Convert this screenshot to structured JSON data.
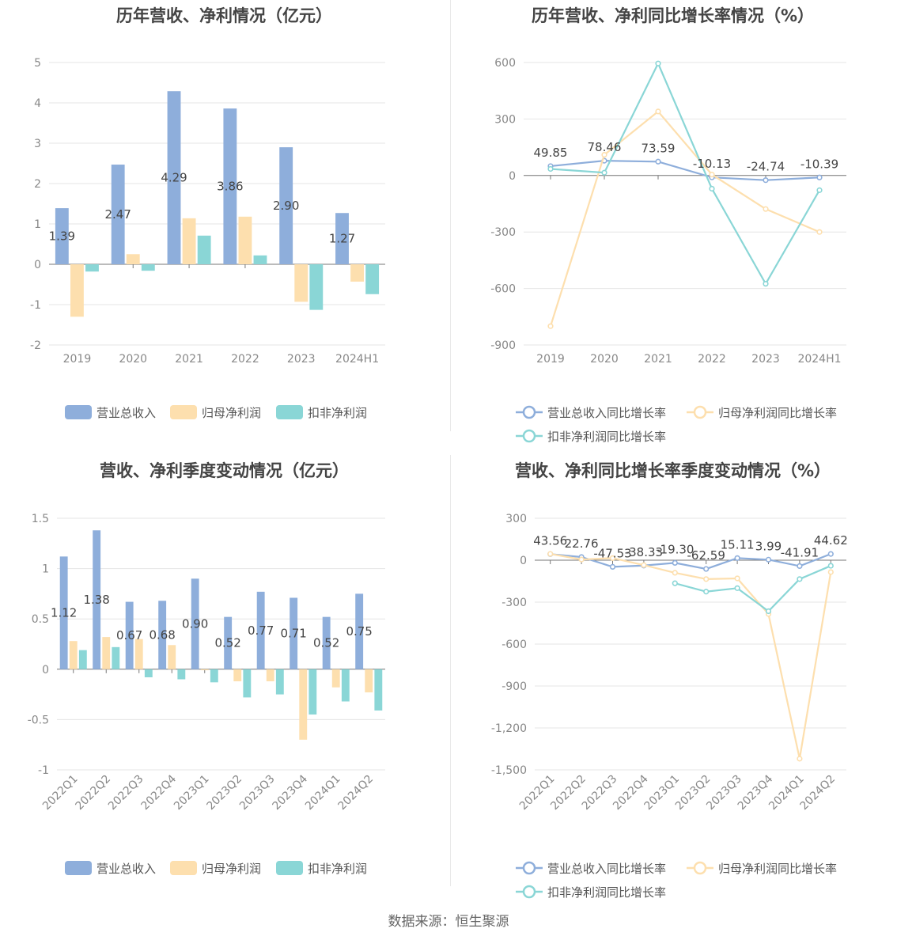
{
  "source": "数据来源：恒生聚源",
  "colors": {
    "revenue": "#8eaedb",
    "netprofit": "#fddfae",
    "deducted": "#8ad6d6",
    "grid": "#e6e6e6",
    "axis": "#777777"
  },
  "chart_data": [
    {
      "type": "bar",
      "title": "历年营收、净利情况（亿元）",
      "categories": [
        "2019",
        "2020",
        "2021",
        "2022",
        "2023",
        "2024H1"
      ],
      "ylim": [
        -2,
        5
      ],
      "yticks": [
        -2,
        -1,
        0,
        1,
        2,
        3,
        4,
        5
      ],
      "series": [
        {
          "name": "营业总收入",
          "color": "#8eaedb",
          "values": [
            1.39,
            2.47,
            4.29,
            3.86,
            2.9,
            1.27
          ],
          "labels": [
            "1.39",
            "2.47",
            "4.29",
            "3.86",
            "2.90",
            "1.27"
          ]
        },
        {
          "name": "归母净利润",
          "color": "#fddfae",
          "values": [
            -1.3,
            0.25,
            1.14,
            1.18,
            -0.93,
            -0.43
          ]
        },
        {
          "name": "扣非净利润",
          "color": "#8ad6d6",
          "values": [
            -0.18,
            -0.16,
            0.71,
            0.22,
            -1.13,
            -0.74
          ]
        }
      ]
    },
    {
      "type": "line",
      "title": "历年营收、净利同比增长率情况（%）",
      "categories": [
        "2019",
        "2020",
        "2021",
        "2022",
        "2023",
        "2024H1"
      ],
      "ylim": [
        -900,
        600
      ],
      "yticks": [
        -900,
        -600,
        -300,
        0,
        300,
        600
      ],
      "series": [
        {
          "name": "营业总收入同比增长率",
          "color": "#8eaedb",
          "values": [
            49.85,
            78.46,
            73.59,
            -10.13,
            -24.74,
            -10.39
          ],
          "labels": [
            "49.85",
            "78.46",
            "73.59",
            "-10.13",
            "-24.74",
            "-10.39"
          ]
        },
        {
          "name": "归母净利润同比增长率",
          "color": "#fddfae",
          "values": [
            -800,
            110,
            340,
            5,
            -178,
            -300
          ]
        },
        {
          "name": "扣非净利润同比增长率",
          "color": "#8ad6d6",
          "values": [
            35,
            15,
            595,
            -70,
            -575,
            -78
          ]
        }
      ]
    },
    {
      "type": "bar",
      "title": "营收、净利季度变动情况（亿元）",
      "categories": [
        "2022Q1",
        "2022Q2",
        "2022Q3",
        "2022Q4",
        "2023Q1",
        "2023Q2",
        "2023Q3",
        "2023Q4",
        "2024Q1",
        "2024Q2"
      ],
      "ylim": [
        -1,
        1.5
      ],
      "yticks": [
        -1,
        -0.5,
        0,
        0.5,
        1,
        1.5
      ],
      "series": [
        {
          "name": "营业总收入",
          "color": "#8eaedb",
          "values": [
            1.12,
            1.38,
            0.67,
            0.68,
            0.9,
            0.52,
            0.77,
            0.71,
            0.52,
            0.75
          ],
          "labels": [
            "1.12",
            "1.38",
            "0.67",
            "0.68",
            "0.90",
            "0.52",
            "0.77",
            "0.71",
            "0.52",
            "0.75"
          ]
        },
        {
          "name": "归母净利润",
          "color": "#fddfae",
          "values": [
            0.28,
            0.32,
            0.3,
            0.24,
            -0.01,
            -0.12,
            -0.12,
            -0.7,
            -0.18,
            -0.23
          ]
        },
        {
          "name": "扣非净利润",
          "color": "#8ad6d6",
          "values": [
            0.19,
            0.22,
            -0.08,
            -0.1,
            -0.13,
            -0.28,
            -0.25,
            -0.45,
            -0.32,
            -0.41
          ]
        }
      ]
    },
    {
      "type": "line",
      "title": "营收、净利同比增长率季度变动情况（%）",
      "categories": [
        "2022Q1",
        "2022Q2",
        "2022Q3",
        "2022Q4",
        "2023Q1",
        "2023Q2",
        "2023Q3",
        "2023Q4",
        "2024Q1",
        "2024Q2"
      ],
      "ylim": [
        -1500,
        300
      ],
      "yticks": [
        -1500,
        -1200,
        -900,
        -600,
        -300,
        0,
        300
      ],
      "series": [
        {
          "name": "营业总收入同比增长率",
          "color": "#8eaedb",
          "values": [
            43.56,
            22.76,
            -47.53,
            -38.33,
            -19.3,
            -62.59,
            15.11,
            3.99,
            -41.91,
            44.62
          ],
          "labels": [
            "43.56",
            "22.76",
            "-47.53",
            "-38.33",
            "-19.30",
            "-62.59",
            "15.11",
            "3.99",
            "-41.91",
            "44.62"
          ]
        },
        {
          "name": "归母净利润同比增长率",
          "color": "#fddfae",
          "values": [
            45,
            5,
            15,
            -35,
            -90,
            -135,
            -130,
            -385,
            -1420,
            -85
          ]
        },
        {
          "name": "扣非净利润同比增长率",
          "color": "#8ad6d6",
          "values": [
            null,
            null,
            null,
            null,
            -165,
            -225,
            -200,
            -365,
            -135,
            -40
          ]
        }
      ]
    }
  ]
}
